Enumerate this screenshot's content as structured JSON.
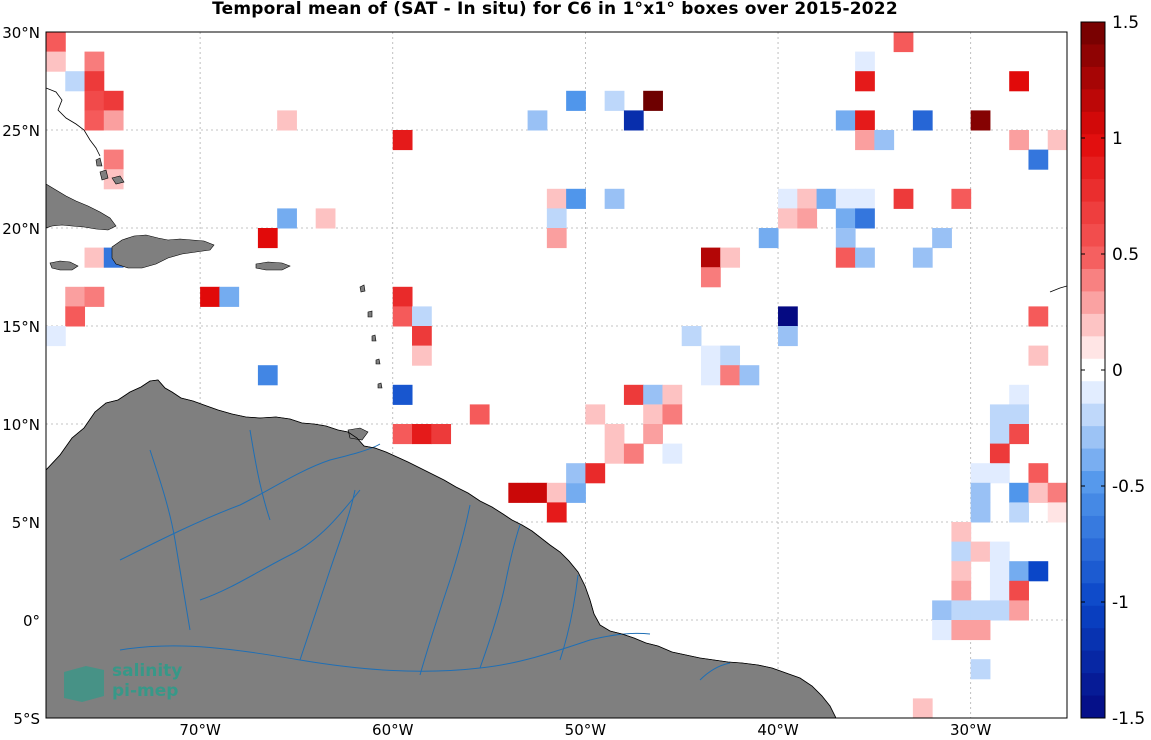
{
  "title": "Temporal mean of (SAT - In situ) for C6 in 1°x1° boxes over 2015-2022",
  "colors": {
    "land": "#7f7f7f",
    "coast": "#000000",
    "river": "#1f6fb5",
    "grid": "#b0b0b0",
    "logo": "#1aa38c"
  },
  "logo": {
    "line1": "salinity",
    "line2": "pi-mep"
  },
  "chart_data": {
    "type": "heatmap",
    "title": "Temporal mean of (SAT - In situ) for C6 in 1°x1° boxes over 2015-2022",
    "lon_range": [
      -78,
      -25
    ],
    "lat_range": [
      -5,
      30
    ],
    "x_ticks": [
      {
        "value": -70,
        "label": "70°W"
      },
      {
        "value": -60,
        "label": "60°W"
      },
      {
        "value": -50,
        "label": "50°W"
      },
      {
        "value": -40,
        "label": "40°W"
      },
      {
        "value": -30,
        "label": "30°W"
      }
    ],
    "y_ticks": [
      {
        "value": 30,
        "label": "30°N"
      },
      {
        "value": 25,
        "label": "25°N"
      },
      {
        "value": 20,
        "label": "20°N"
      },
      {
        "value": 15,
        "label": "15°N"
      },
      {
        "value": 10,
        "label": "10°N"
      },
      {
        "value": 5,
        "label": "5°N"
      },
      {
        "value": 0,
        "label": "0°"
      },
      {
        "value": -5,
        "label": "5°S"
      }
    ],
    "colorbar": {
      "range": [
        -1.5,
        1.5
      ],
      "ticks": [
        {
          "value": 1.5,
          "label": "1.5"
        },
        {
          "value": 1,
          "label": "1"
        },
        {
          "value": 0.5,
          "label": "0.5"
        },
        {
          "value": 0,
          "label": "0"
        },
        {
          "value": -0.5,
          "label": "-0.5"
        },
        {
          "value": -1,
          "label": "-1"
        },
        {
          "value": -1.5,
          "label": "-1.5"
        }
      ]
    },
    "grid": true,
    "cells": [
      [
        -78,
        29,
        0.5
      ],
      [
        -77,
        30,
        0.2
      ],
      [
        -78,
        28,
        0.2
      ],
      [
        -76,
        28,
        0.4
      ],
      [
        -77,
        27,
        -0.2
      ],
      [
        -76,
        27,
        0.7
      ],
      [
        -76,
        26,
        0.6
      ],
      [
        -75,
        26,
        0.7
      ],
      [
        -76,
        25,
        0.5
      ],
      [
        -75,
        25,
        0.3
      ],
      [
        -75,
        23,
        0.4
      ],
      [
        -75,
        22,
        0.2
      ],
      [
        -66,
        25,
        0.2
      ],
      [
        -60,
        24,
        0.9
      ],
      [
        -53,
        25,
        -0.3
      ],
      [
        -51,
        26,
        -0.5
      ],
      [
        -49,
        26,
        -0.2
      ],
      [
        -47,
        26,
        1.5
      ],
      [
        -48,
        25,
        -1.2
      ],
      [
        -52,
        21,
        0.2
      ],
      [
        -51,
        21,
        -0.5
      ],
      [
        -49,
        21,
        -0.3
      ],
      [
        -52,
        20,
        -0.2
      ],
      [
        -52,
        19,
        0.3
      ],
      [
        -66,
        20,
        -0.4
      ],
      [
        -64,
        20,
        0.2
      ],
      [
        -67,
        19,
        1.0
      ],
      [
        -76,
        18,
        0.2
      ],
      [
        -75,
        18,
        -0.7
      ],
      [
        -77,
        16,
        0.3
      ],
      [
        -76,
        16,
        0.4
      ],
      [
        -77,
        15,
        0.5
      ],
      [
        -78,
        14,
        -0.1
      ],
      [
        -70,
        16,
        1.0
      ],
      [
        -69,
        16,
        -0.4
      ],
      [
        -67,
        12,
        -0.6
      ],
      [
        -60,
        16,
        0.8
      ],
      [
        -60,
        15,
        0.5
      ],
      [
        -59,
        15,
        -0.2
      ],
      [
        -59,
        14,
        0.7
      ],
      [
        -59,
        13,
        0.2
      ],
      [
        -60,
        11,
        -0.9
      ],
      [
        -60,
        9,
        0.5
      ],
      [
        -59,
        9,
        0.9
      ],
      [
        -58,
        9,
        0.7
      ],
      [
        -56,
        10,
        0.5
      ],
      [
        -54,
        6,
        1.1
      ],
      [
        -53,
        6,
        1.1
      ],
      [
        -52,
        6,
        0.2
      ],
      [
        -51,
        6,
        -0.4
      ],
      [
        -52,
        5,
        0.9
      ],
      [
        -51,
        7,
        -0.3
      ],
      [
        -50,
        10,
        0.2
      ],
      [
        -49,
        9,
        0.2
      ],
      [
        -49,
        8,
        0.2
      ],
      [
        -50,
        7,
        0.8
      ],
      [
        -48,
        8,
        0.4
      ],
      [
        -48,
        11,
        0.7
      ],
      [
        -47,
        11,
        -0.3
      ],
      [
        -46,
        11,
        0.2
      ],
      [
        -47,
        10,
        0.2
      ],
      [
        -46,
        10,
        0.4
      ],
      [
        -47,
        9,
        0.3
      ],
      [
        -46,
        8,
        -0.1
      ],
      [
        -45,
        14,
        -0.2
      ],
      [
        -44,
        13,
        -0.1
      ],
      [
        -43,
        13,
        -0.2
      ],
      [
        -44,
        12,
        -0.1
      ],
      [
        -43,
        12,
        0.4
      ],
      [
        -42,
        12,
        -0.3
      ],
      [
        -44,
        18,
        1.2
      ],
      [
        -43,
        18,
        0.2
      ],
      [
        -44,
        17,
        0.4
      ],
      [
        -41,
        19,
        -0.4
      ],
      [
        -40,
        21,
        -0.1
      ],
      [
        -39,
        21,
        0.2
      ],
      [
        -40,
        20,
        0.2
      ],
      [
        -39,
        20,
        0.3
      ],
      [
        -38,
        21,
        -0.4
      ],
      [
        -37,
        21,
        -0.1
      ],
      [
        -36,
        21,
        -0.1
      ],
      [
        -37,
        20,
        -0.4
      ],
      [
        -36,
        20,
        -0.7
      ],
      [
        -37,
        19,
        -0.3
      ],
      [
        -37,
        18,
        0.5
      ],
      [
        -36,
        18,
        -0.3
      ],
      [
        -34,
        21,
        0.7
      ],
      [
        -31,
        21,
        0.5
      ],
      [
        -32,
        19,
        -0.3
      ],
      [
        -33,
        18,
        -0.3
      ],
      [
        -40,
        15,
        -1.5
      ],
      [
        -40,
        14,
        -0.3
      ],
      [
        -37,
        25,
        -0.4
      ],
      [
        -36,
        25,
        0.9
      ],
      [
        -36,
        24,
        0.3
      ],
      [
        -35,
        24,
        -0.3
      ],
      [
        -36,
        28,
        -0.1
      ],
      [
        -36,
        27,
        0.9
      ],
      [
        -34,
        29,
        0.5
      ],
      [
        -33,
        25,
        -0.8
      ],
      [
        -30,
        25,
        1.4
      ],
      [
        -28,
        24,
        0.3
      ],
      [
        -26,
        24,
        0.2
      ],
      [
        -27,
        23,
        -0.7
      ],
      [
        -28,
        27,
        1.0
      ],
      [
        -27,
        15,
        0.5
      ],
      [
        -27,
        13,
        0.2
      ],
      [
        -28,
        11,
        -0.1
      ],
      [
        -29,
        10,
        -0.2
      ],
      [
        -28,
        10,
        -0.2
      ],
      [
        -29,
        9,
        -0.2
      ],
      [
        -28,
        9,
        0.6
      ],
      [
        -29,
        8,
        0.7
      ],
      [
        -30,
        7,
        -0.1
      ],
      [
        -29,
        7,
        -0.1
      ],
      [
        -27,
        7,
        0.5
      ],
      [
        -30,
        6,
        -0.3
      ],
      [
        -28,
        6,
        -0.5
      ],
      [
        -27,
        6,
        0.2
      ],
      [
        -26,
        6,
        0.4
      ],
      [
        -25,
        6,
        0.4
      ],
      [
        -30,
        5,
        -0.3
      ],
      [
        -28,
        5,
        -0.2
      ],
      [
        -26,
        5,
        0.1
      ],
      [
        -25,
        5,
        -0.2
      ],
      [
        -31,
        4,
        0.2
      ],
      [
        -31,
        3,
        -0.2
      ],
      [
        -30,
        3,
        0.2
      ],
      [
        -29,
        3,
        -0.1
      ],
      [
        -31,
        2,
        0.2
      ],
      [
        -29,
        2,
        -0.1
      ],
      [
        -28,
        2,
        -0.4
      ],
      [
        -27,
        2,
        -1.0
      ],
      [
        -31,
        1,
        0.3
      ],
      [
        -29,
        1,
        -0.1
      ],
      [
        -28,
        1,
        0.6
      ],
      [
        -32,
        0,
        -0.3
      ],
      [
        -31,
        0,
        -0.2
      ],
      [
        -30,
        0,
        -0.2
      ],
      [
        -29,
        0,
        -0.2
      ],
      [
        -28,
        0,
        0.3
      ],
      [
        -32,
        -1,
        -0.1
      ],
      [
        -31,
        -1,
        0.3
      ],
      [
        -30,
        -1,
        0.3
      ],
      [
        -30,
        -3,
        -0.2
      ],
      [
        -33,
        -5,
        0.2
      ]
    ]
  }
}
